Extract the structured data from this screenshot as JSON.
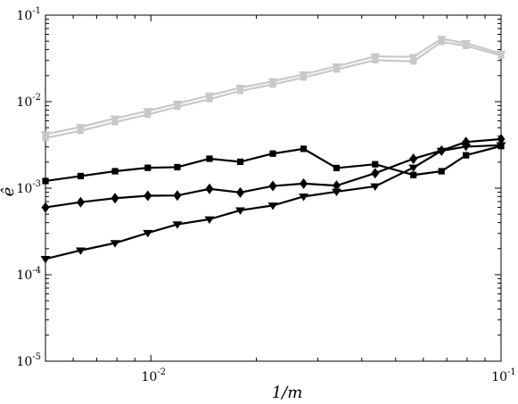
{
  "chart_data": {
    "type": "line",
    "title": "",
    "xlabel": "1/m",
    "ylabel": "ê",
    "xscale": "log",
    "yscale": "log",
    "xlim": [
      0.005,
      0.1
    ],
    "ylim": [
      1e-05,
      0.1
    ],
    "grid": false,
    "legend": "none",
    "x_ticks": [
      {
        "value": 0.01,
        "base": "10",
        "exp": "-2"
      },
      {
        "value": 0.1,
        "base": "10",
        "exp": "-1"
      }
    ],
    "y_ticks": [
      {
        "value": 1e-05,
        "base": "10",
        "exp": "-5"
      },
      {
        "value": 0.0001,
        "base": "10",
        "exp": "-4"
      },
      {
        "value": 0.001,
        "base": "10",
        "exp": "-3"
      },
      {
        "value": 0.01,
        "base": "10",
        "exp": "-2"
      },
      {
        "value": 0.1,
        "base": "10",
        "exp": "-1"
      }
    ],
    "series": [
      {
        "marker": "triangle-down",
        "color": "#c8c8c8",
        "x": [
          0.005,
          0.0063,
          0.0079,
          0.0098,
          0.0119,
          0.0147,
          0.018,
          0.0223,
          0.0273,
          0.0339,
          0.0437,
          0.0562,
          0.0676,
          0.0794,
          0.1
        ],
        "y": [
          0.0042,
          0.0051,
          0.0064,
          0.0078,
          0.0095,
          0.0118,
          0.0145,
          0.0172,
          0.0207,
          0.0256,
          0.0334,
          0.0329,
          0.0532,
          0.0475,
          0.0359
        ]
      },
      {
        "marker": "square",
        "color": "#c8c8c8",
        "x": [
          0.005,
          0.0063,
          0.0079,
          0.0098,
          0.0119,
          0.0147,
          0.018,
          0.0223,
          0.0273,
          0.0339,
          0.0437,
          0.0562,
          0.0676,
          0.0794,
          0.1
        ],
        "y": [
          0.0038,
          0.0046,
          0.0058,
          0.0071,
          0.0087,
          0.0107,
          0.0133,
          0.0158,
          0.019,
          0.0236,
          0.0302,
          0.0292,
          0.0491,
          0.0442,
          0.0342
        ]
      },
      {
        "marker": "square",
        "color": "#000000",
        "x": [
          0.005,
          0.0063,
          0.0079,
          0.0098,
          0.0119,
          0.0147,
          0.018,
          0.0223,
          0.0273,
          0.0339,
          0.0437,
          0.0562,
          0.0676,
          0.0794,
          0.1
        ],
        "y": [
          0.00121,
          0.00138,
          0.00157,
          0.00172,
          0.00175,
          0.00219,
          0.00202,
          0.00251,
          0.00285,
          0.00171,
          0.00189,
          0.00142,
          0.00157,
          0.0024,
          0.00307
        ]
      },
      {
        "marker": "diamond",
        "color": "#000000",
        "x": [
          0.005,
          0.0063,
          0.0079,
          0.0098,
          0.0119,
          0.0147,
          0.018,
          0.0223,
          0.0273,
          0.0339,
          0.0437,
          0.0562,
          0.0676,
          0.0794,
          0.1
        ],
        "y": [
          0.000599,
          0.000689,
          0.000766,
          0.000817,
          0.000823,
          0.000981,
          0.000892,
          0.00106,
          0.00113,
          0.00107,
          0.00149,
          0.00219,
          0.00272,
          0.00342,
          0.00369
        ]
      },
      {
        "marker": "triangle-down",
        "color": "#000000",
        "x": [
          0.005,
          0.0063,
          0.0079,
          0.0098,
          0.0119,
          0.0147,
          0.018,
          0.0223,
          0.0273,
          0.0339,
          0.0437,
          0.0562,
          0.0676,
          0.0794,
          0.1
        ],
        "y": [
          0.000152,
          0.000191,
          0.000232,
          0.000304,
          0.000382,
          0.000437,
          0.000555,
          0.000631,
          0.000801,
          0.000911,
          0.00105,
          0.00173,
          0.00271,
          0.00302,
          0.00314
        ]
      }
    ]
  }
}
